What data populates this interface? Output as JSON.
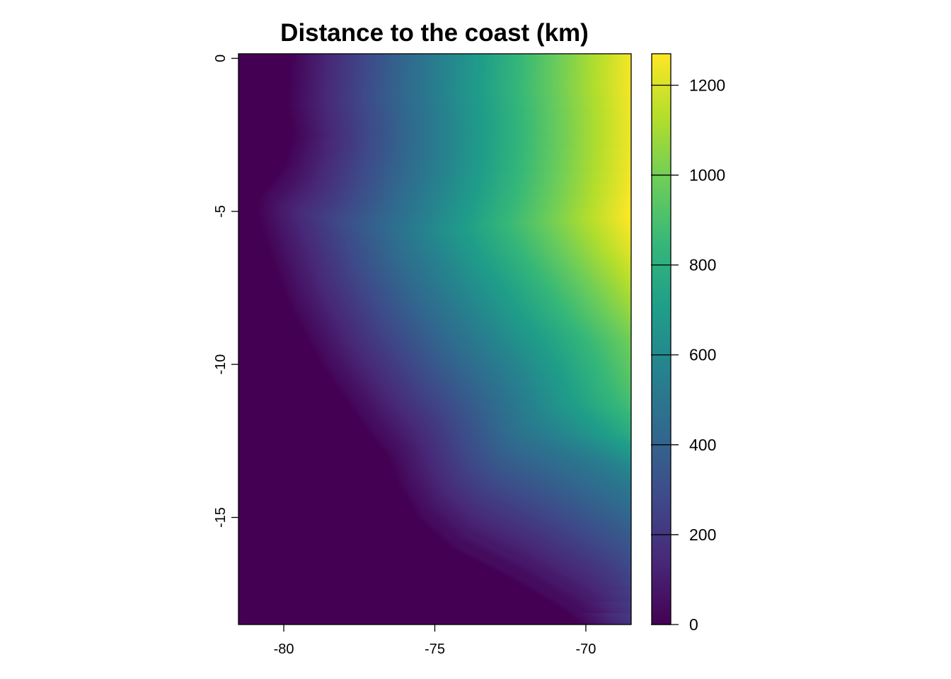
{
  "chart_data": {
    "type": "heatmap",
    "title": "Distance to the coast (km)",
    "xlabel": "",
    "ylabel": "",
    "x_range": [
      -81.5,
      -68.5
    ],
    "y_range": [
      -18.5,
      0.15
    ],
    "x_ticks": [
      -80,
      -75,
      -70
    ],
    "x_tick_labels": [
      "-80",
      "-75",
      "-70"
    ],
    "y_ticks": [
      0,
      -5,
      -10,
      -15
    ],
    "y_tick_labels": [
      "0",
      "-5",
      "-10",
      "-15"
    ],
    "legend": {
      "title": "",
      "placement": "right",
      "range": [
        0,
        1270
      ],
      "ticks": [
        0,
        200,
        400,
        600,
        800,
        1000,
        1200
      ],
      "tick_labels": [
        "0",
        "200",
        "400",
        "600",
        "800",
        "1000",
        "1200"
      ],
      "colormap": "viridis"
    },
    "colormap_stops": [
      "#440154",
      "#482878",
      "#3E4A89",
      "#31688E",
      "#26828E",
      "#1F9E89",
      "#35B779",
      "#6DCD59",
      "#B4DE2C",
      "#FDE725"
    ],
    "coast_boundary": {
      "lat": [
        0,
        -1.5,
        -2.5,
        -3.5,
        -4.5,
        -5.0,
        -6.0,
        -8.0,
        -10.0,
        -12.0,
        -13.0,
        -14.0,
        -15.0,
        -16.0,
        -17.0,
        -18.0,
        -18.5
      ],
      "lon": [
        -79.8,
        -79.9,
        -79.7,
        -80.0,
        -80.8,
        -80.9,
        -80.6,
        -79.9,
        -78.8,
        -77.4,
        -76.6,
        -76.2,
        -75.6,
        -74.5,
        -72.5,
        -70.8,
        -70.2
      ]
    },
    "max_distance_km": 1270
  }
}
